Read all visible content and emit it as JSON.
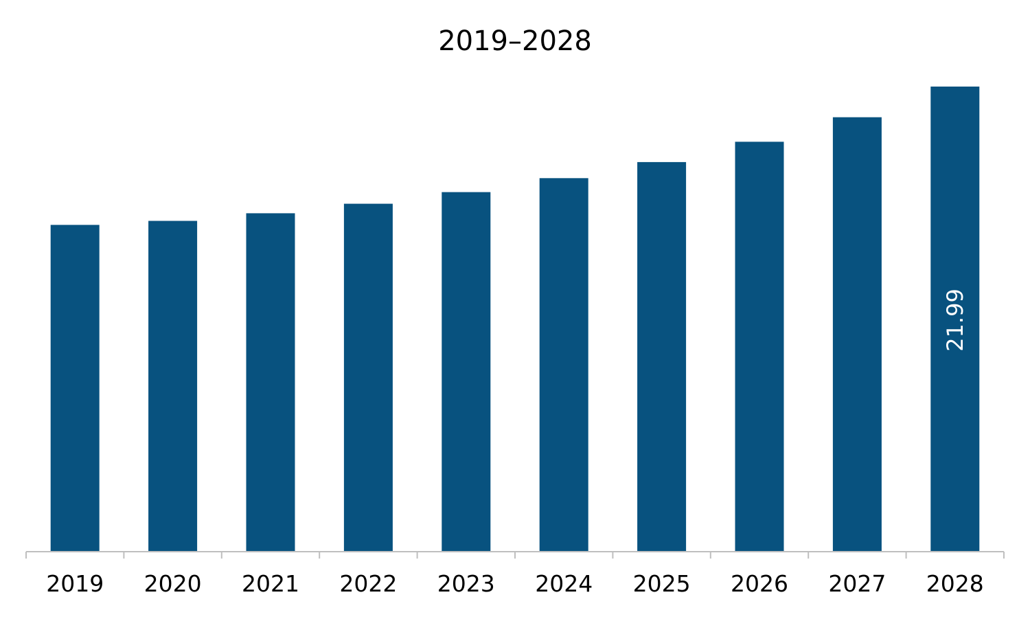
{
  "chart_data": {
    "type": "bar",
    "title": "2019–2028",
    "xlabel": "",
    "ylabel": "",
    "categories": [
      "2019",
      "2020",
      "2021",
      "2022",
      "2023",
      "2024",
      "2025",
      "2026",
      "2027",
      "2028"
    ],
    "values": [
      15.45,
      15.64,
      16.0,
      16.45,
      17.0,
      17.66,
      18.42,
      19.38,
      20.54,
      21.99
    ],
    "data_labels": [
      {
        "category": "2028",
        "text": "21.99",
        "orientation": "vertical"
      }
    ],
    "ylim": [
      0,
      21.99
    ],
    "grid": false,
    "legend": "none",
    "colors": {
      "bar": "#08527f",
      "axis": "#bfbfbf",
      "text": "#000000",
      "data_label": "#ffffff"
    }
  }
}
